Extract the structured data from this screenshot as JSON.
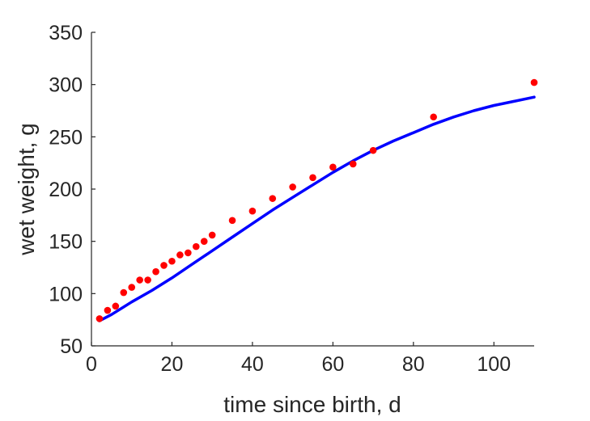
{
  "chart_data": {
    "type": "scatter",
    "title": "",
    "xlabel": "time since birth, d",
    "ylabel": "wet weight, g",
    "xlim": [
      0,
      110
    ],
    "ylim": [
      50,
      350
    ],
    "xticks": [
      0,
      20,
      40,
      60,
      80,
      100
    ],
    "yticks": [
      50,
      100,
      150,
      200,
      250,
      300,
      350
    ],
    "grid": false,
    "legend": "none",
    "series": [
      {
        "kind": "points",
        "color": "#ff0000",
        "x": [
          2,
          4,
          6,
          8,
          10,
          12,
          14,
          16,
          18,
          20,
          22,
          24,
          26,
          28,
          30,
          35,
          40,
          45,
          50,
          55,
          60,
          65,
          70,
          85,
          110
        ],
        "y": [
          76,
          84,
          88,
          101,
          106,
          113,
          113,
          121,
          127,
          131,
          137,
          139,
          145,
          150,
          156,
          170,
          179,
          191,
          202,
          211,
          221,
          224,
          237,
          269,
          302
        ]
      },
      {
        "kind": "line",
        "color": "#0000ff",
        "x": [
          2,
          5,
          10,
          15,
          20,
          25,
          30,
          35,
          40,
          45,
          50,
          55,
          60,
          65,
          70,
          75,
          80,
          85,
          90,
          95,
          100,
          105,
          110
        ],
        "y": [
          74,
          80,
          92,
          103,
          115,
          128,
          141,
          154,
          167,
          180,
          192,
          204,
          216,
          227,
          237,
          246,
          254,
          262,
          269,
          275,
          280,
          284,
          288
        ]
      }
    ]
  }
}
